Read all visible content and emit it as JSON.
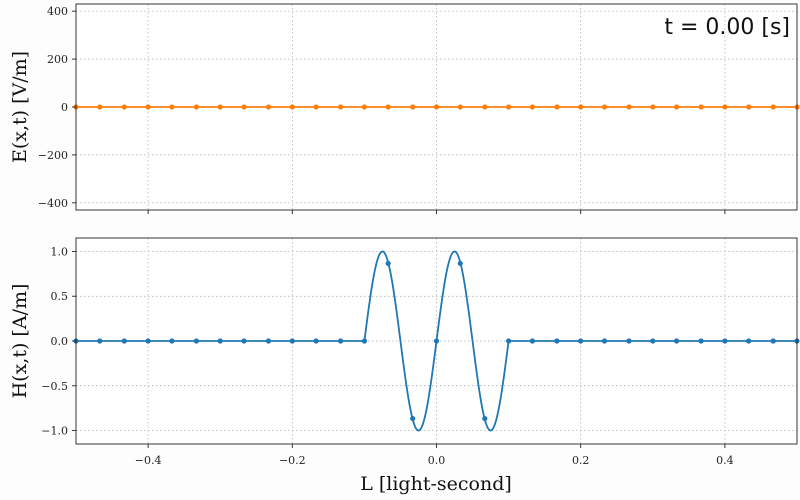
{
  "chart_data": [
    {
      "type": "line",
      "panel": "top",
      "ylabel": "E(x,t) [V/m]",
      "ylim": [
        -430,
        430
      ],
      "xlim": [
        -0.5,
        0.5
      ],
      "yticks": [
        -400,
        -200,
        0,
        200,
        400
      ],
      "ytick_labels": [
        "−400",
        "−200",
        "0",
        "200",
        "400"
      ],
      "grid": true,
      "annotation": "t = 0.00 [s]",
      "color": "#ff7f0e",
      "series": [
        {
          "x": [
            -0.5,
            -0.467,
            -0.433,
            -0.4,
            -0.367,
            -0.333,
            -0.3,
            -0.267,
            -0.233,
            -0.2,
            -0.167,
            -0.133,
            -0.1,
            -0.067,
            -0.033,
            0.0,
            0.033,
            0.067,
            0.1,
            0.133,
            0.167,
            0.2,
            0.233,
            0.267,
            0.3,
            0.333,
            0.367,
            0.4,
            0.433,
            0.467,
            0.5
          ],
          "values": [
            0,
            0,
            0,
            0,
            0,
            0,
            0,
            0,
            0,
            0,
            0,
            0,
            0,
            0,
            0,
            0,
            0,
            0,
            0,
            0,
            0,
            0,
            0,
            0,
            0,
            0,
            0,
            0,
            0,
            0,
            0
          ]
        }
      ]
    },
    {
      "type": "line",
      "panel": "bottom",
      "ylabel": "H(x,t) [A/m]",
      "xlabel": "L [light-second]",
      "ylim": [
        -1.15,
        1.15
      ],
      "xlim": [
        -0.5,
        0.5
      ],
      "yticks": [
        -1.0,
        -0.5,
        0.0,
        0.5,
        1.0
      ],
      "ytick_labels": [
        "−1.0",
        "−0.5",
        "0.0",
        "0.5",
        "1.0"
      ],
      "xticks": [
        -0.4,
        -0.2,
        0.0,
        0.2,
        0.4
      ],
      "xtick_labels": [
        "−0.4",
        "−0.2",
        "0.0",
        "0.2",
        "0.4"
      ],
      "grid": true,
      "color": "#1f77b4",
      "curve": {
        "function": "sin",
        "amplitude": 1.0,
        "wavelength": 0.1,
        "support": [
          -0.1,
          0.1
        ]
      },
      "series": [
        {
          "x": [
            -0.5,
            -0.467,
            -0.433,
            -0.4,
            -0.367,
            -0.333,
            -0.3,
            -0.267,
            -0.233,
            -0.2,
            -0.167,
            -0.133,
            -0.1,
            -0.067,
            -0.033,
            0.0,
            0.033,
            0.067,
            0.1,
            0.133,
            0.167,
            0.2,
            0.233,
            0.267,
            0.3,
            0.333,
            0.367,
            0.4,
            0.433,
            0.467,
            0.5
          ],
          "values": [
            0,
            0,
            0,
            0,
            0,
            0,
            0,
            0,
            0,
            0,
            0,
            0,
            0,
            0.866,
            -0.866,
            0,
            0.866,
            -0.866,
            0,
            0,
            0,
            0,
            0,
            0,
            0,
            0,
            0,
            0,
            0,
            0,
            0
          ]
        }
      ]
    }
  ]
}
